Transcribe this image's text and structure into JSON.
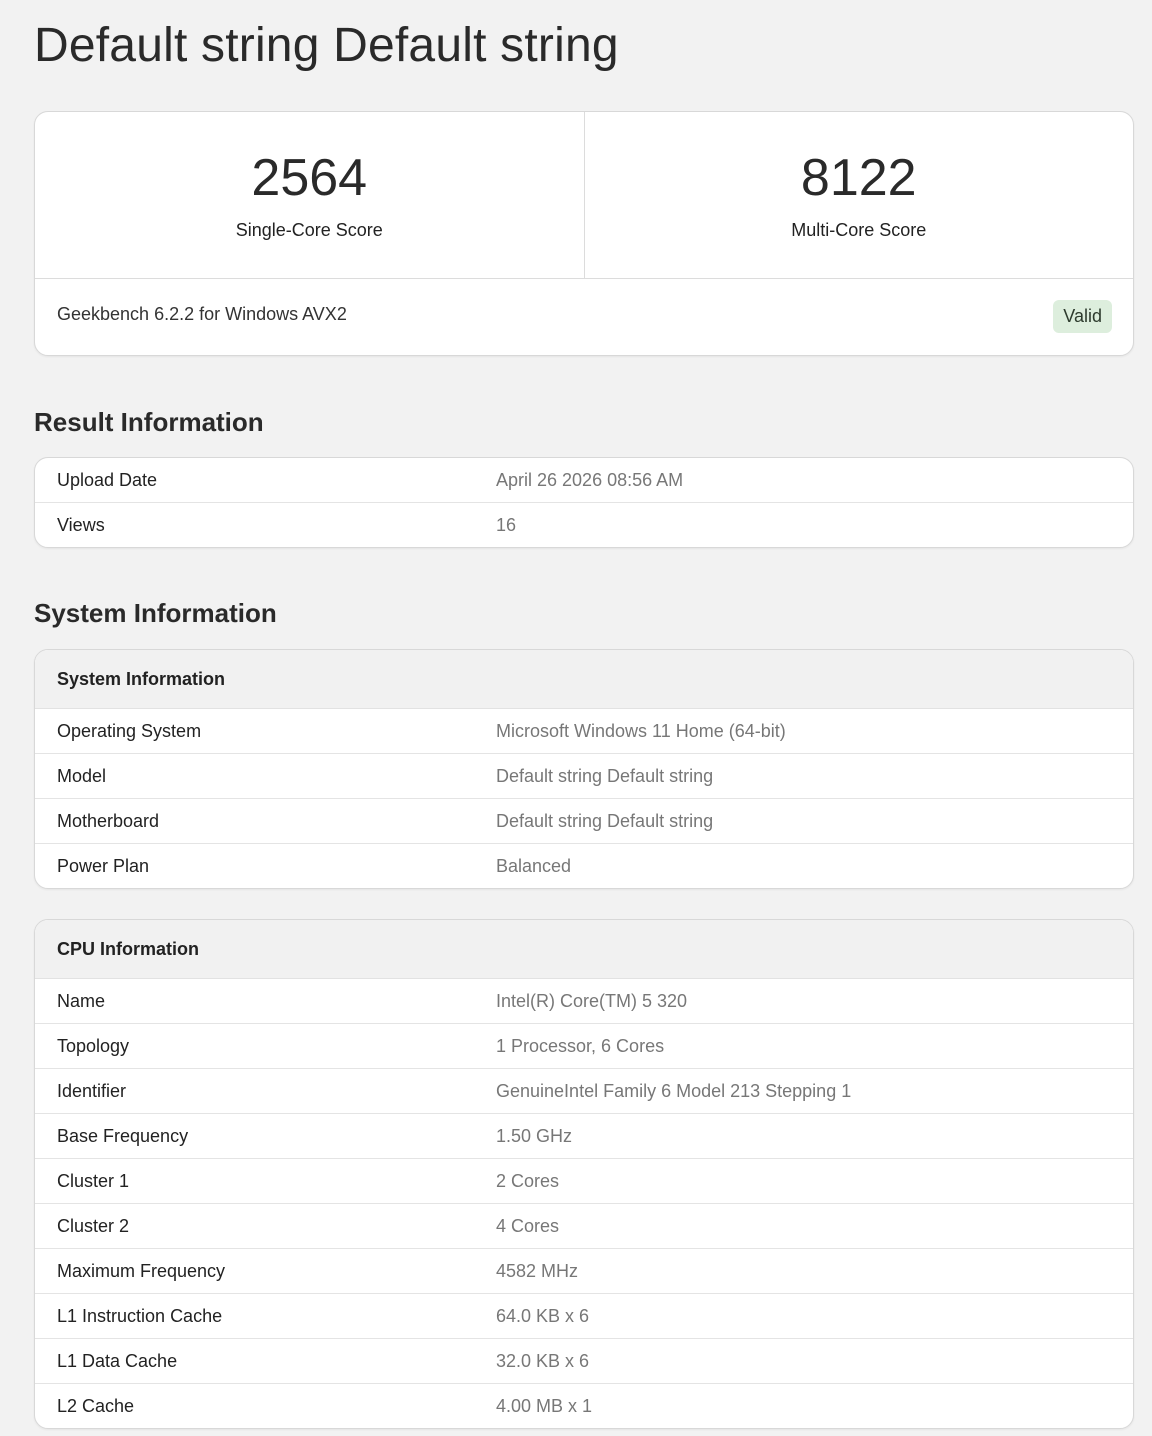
{
  "title": "Default string Default string",
  "scores": {
    "single": {
      "value": "2564",
      "label": "Single-Core Score"
    },
    "multi": {
      "value": "8122",
      "label": "Multi-Core Score"
    },
    "version": "Geekbench 6.2.2 for Windows AVX2",
    "status": "Valid",
    "status_color": "#ddeedd"
  },
  "result_info": {
    "heading": "Result Information",
    "rows": [
      {
        "k": "Upload Date",
        "v": "April 26 2026 08:56 AM"
      },
      {
        "k": "Views",
        "v": "16"
      }
    ]
  },
  "system_section": {
    "heading": "System Information"
  },
  "system_info": {
    "heading": "System Information",
    "rows": [
      {
        "k": "Operating System",
        "v": "Microsoft Windows 11 Home (64-bit)"
      },
      {
        "k": "Model",
        "v": "Default string Default string"
      },
      {
        "k": "Motherboard",
        "v": "Default string Default string"
      },
      {
        "k": "Power Plan",
        "v": "Balanced"
      }
    ]
  },
  "cpu_info": {
    "heading": "CPU Information",
    "rows": [
      {
        "k": "Name",
        "v": "Intel(R) Core(TM) 5 320"
      },
      {
        "k": "Topology",
        "v": "1 Processor, 6 Cores"
      },
      {
        "k": "Identifier",
        "v": "GenuineIntel Family 6 Model 213 Stepping 1"
      },
      {
        "k": "Base Frequency",
        "v": "1.50 GHz"
      },
      {
        "k": "Cluster 1",
        "v": "2 Cores"
      },
      {
        "k": "Cluster 2",
        "v": "4 Cores"
      },
      {
        "k": "Maximum Frequency",
        "v": "4582 MHz"
      },
      {
        "k": "L1 Instruction Cache",
        "v": "64.0 KB x 6"
      },
      {
        "k": "L1 Data Cache",
        "v": "32.0 KB x 6"
      },
      {
        "k": "L2 Cache",
        "v": "4.00 MB x 1"
      }
    ]
  }
}
